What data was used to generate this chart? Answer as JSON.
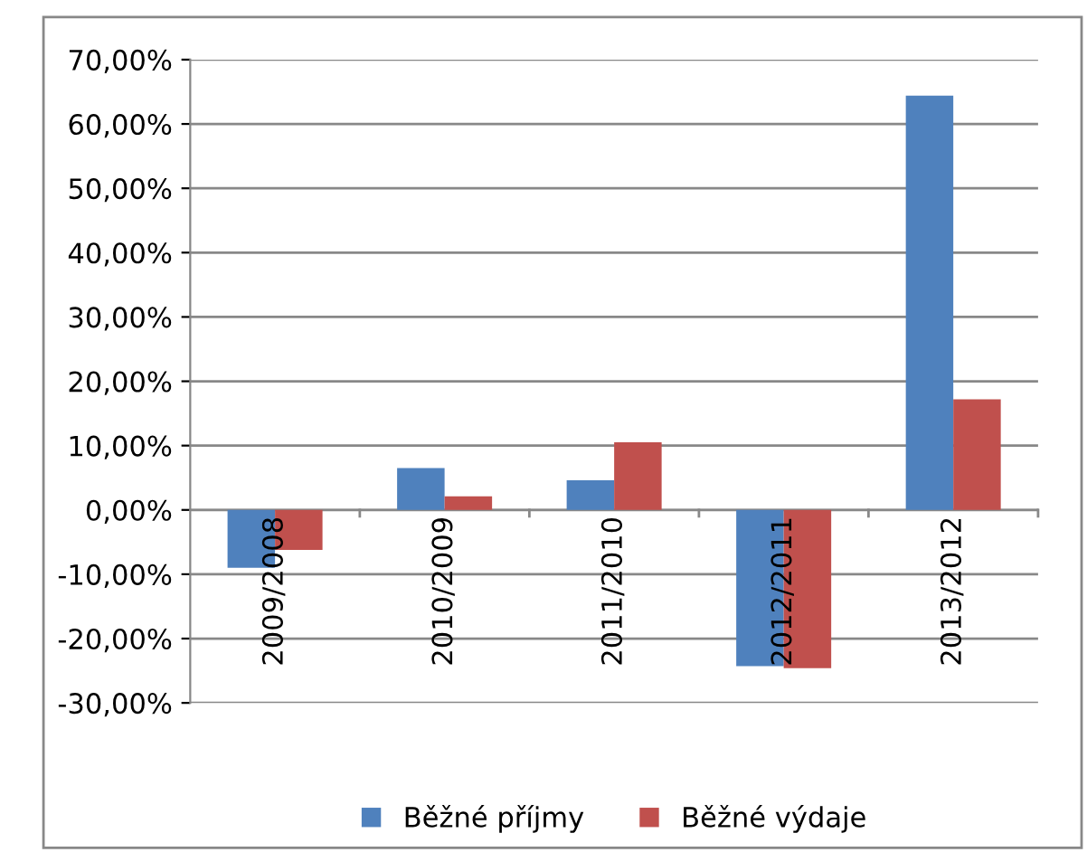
{
  "chart_data": {
    "type": "bar",
    "categories": [
      "2009/2008",
      "2010/2009",
      "2011/2010",
      "2012/2011",
      "2013/2012"
    ],
    "series": [
      {
        "name": "Běžné příjmy",
        "color": "#4f81bd",
        "values": [
          -9.0,
          6.5,
          4.6,
          -24.3,
          64.4
        ]
      },
      {
        "name": "Běžné výdaje",
        "color": "#c0504d",
        "values": [
          -6.2,
          2.1,
          10.5,
          -24.6,
          17.2
        ]
      }
    ],
    "ylim": [
      -30,
      70
    ],
    "yticks": [
      {
        "value": -30,
        "label": "-30,00%"
      },
      {
        "value": -20,
        "label": "-20,00%"
      },
      {
        "value": -10,
        "label": "-10,00%"
      },
      {
        "value": 0,
        "label": "0,00%"
      },
      {
        "value": 10,
        "label": "10,00%"
      },
      {
        "value": 20,
        "label": "20,00%"
      },
      {
        "value": 30,
        "label": "30,00%"
      },
      {
        "value": 40,
        "label": "40,00%"
      },
      {
        "value": 50,
        "label": "50,00%"
      },
      {
        "value": 60,
        "label": "60,00%"
      },
      {
        "value": 70,
        "label": "70,00%"
      }
    ],
    "grid": "y",
    "legend": "bottom"
  }
}
